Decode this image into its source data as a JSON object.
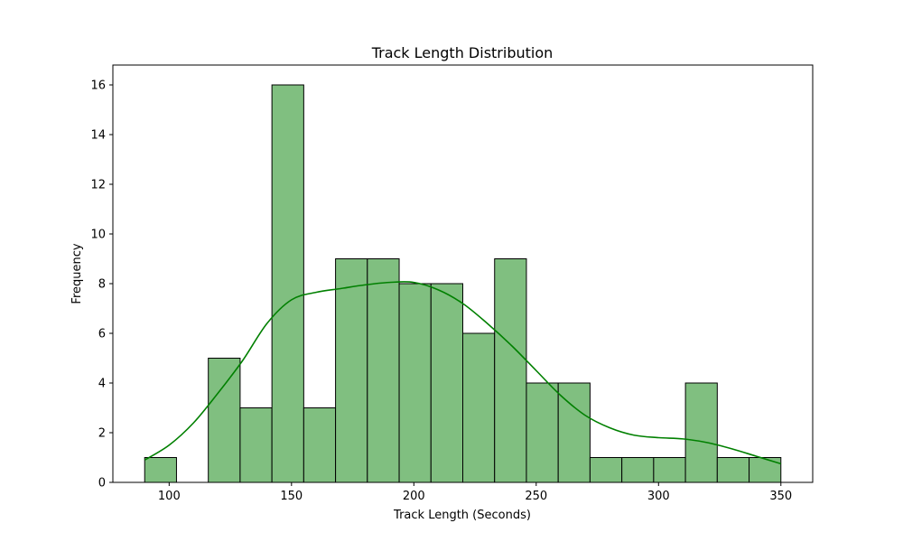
{
  "chart_data": {
    "type": "bar",
    "subtype": "histogram",
    "title": "Track Length Distribution",
    "xlabel": "Track Length (Seconds)",
    "ylabel": "Frequency",
    "xlim": [
      77,
      363
    ],
    "ylim": [
      0,
      16.8
    ],
    "x_ticks": [
      100,
      150,
      200,
      250,
      300,
      350
    ],
    "y_ticks": [
      0,
      2,
      4,
      6,
      8,
      10,
      12,
      14,
      16
    ],
    "bins": [
      {
        "x0": 90,
        "x1": 103,
        "count": 1
      },
      {
        "x0": 103,
        "x1": 116,
        "count": 0
      },
      {
        "x0": 116,
        "x1": 129,
        "count": 5
      },
      {
        "x0": 129,
        "x1": 142,
        "count": 3
      },
      {
        "x0": 142,
        "x1": 155,
        "count": 16
      },
      {
        "x0": 155,
        "x1": 168,
        "count": 3
      },
      {
        "x0": 168,
        "x1": 181,
        "count": 9
      },
      {
        "x0": 181,
        "x1": 194,
        "count": 9
      },
      {
        "x0": 194,
        "x1": 207,
        "count": 8
      },
      {
        "x0": 207,
        "x1": 220,
        "count": 8
      },
      {
        "x0": 220,
        "x1": 233,
        "count": 6
      },
      {
        "x0": 233,
        "x1": 246,
        "count": 9
      },
      {
        "x0": 246,
        "x1": 259,
        "count": 4
      },
      {
        "x0": 259,
        "x1": 272,
        "count": 4
      },
      {
        "x0": 272,
        "x1": 285,
        "count": 1
      },
      {
        "x0": 285,
        "x1": 298,
        "count": 1
      },
      {
        "x0": 298,
        "x1": 311,
        "count": 1
      },
      {
        "x0": 311,
        "x1": 324,
        "count": 4
      },
      {
        "x0": 324,
        "x1": 337,
        "count": 1
      },
      {
        "x0": 337,
        "x1": 350,
        "count": 1
      }
    ],
    "kde": {
      "x": [
        90,
        100,
        110,
        120,
        130,
        140,
        150,
        160,
        170,
        180,
        190,
        200,
        210,
        220,
        230,
        240,
        250,
        260,
        270,
        280,
        290,
        300,
        310,
        320,
        330,
        340,
        350
      ],
      "y": [
        0.9,
        1.5,
        2.4,
        3.6,
        4.9,
        6.4,
        7.35,
        7.65,
        7.8,
        7.95,
        8.05,
        8.05,
        7.75,
        7.2,
        6.4,
        5.5,
        4.5,
        3.5,
        2.7,
        2.2,
        1.9,
        1.8,
        1.75,
        1.6,
        1.35,
        1.05,
        0.75
      ]
    },
    "grid": false,
    "legend": null,
    "colors": {
      "bar_fill": "#80bf80",
      "bar_edge": "#000000",
      "kde_line": "#008000"
    }
  }
}
